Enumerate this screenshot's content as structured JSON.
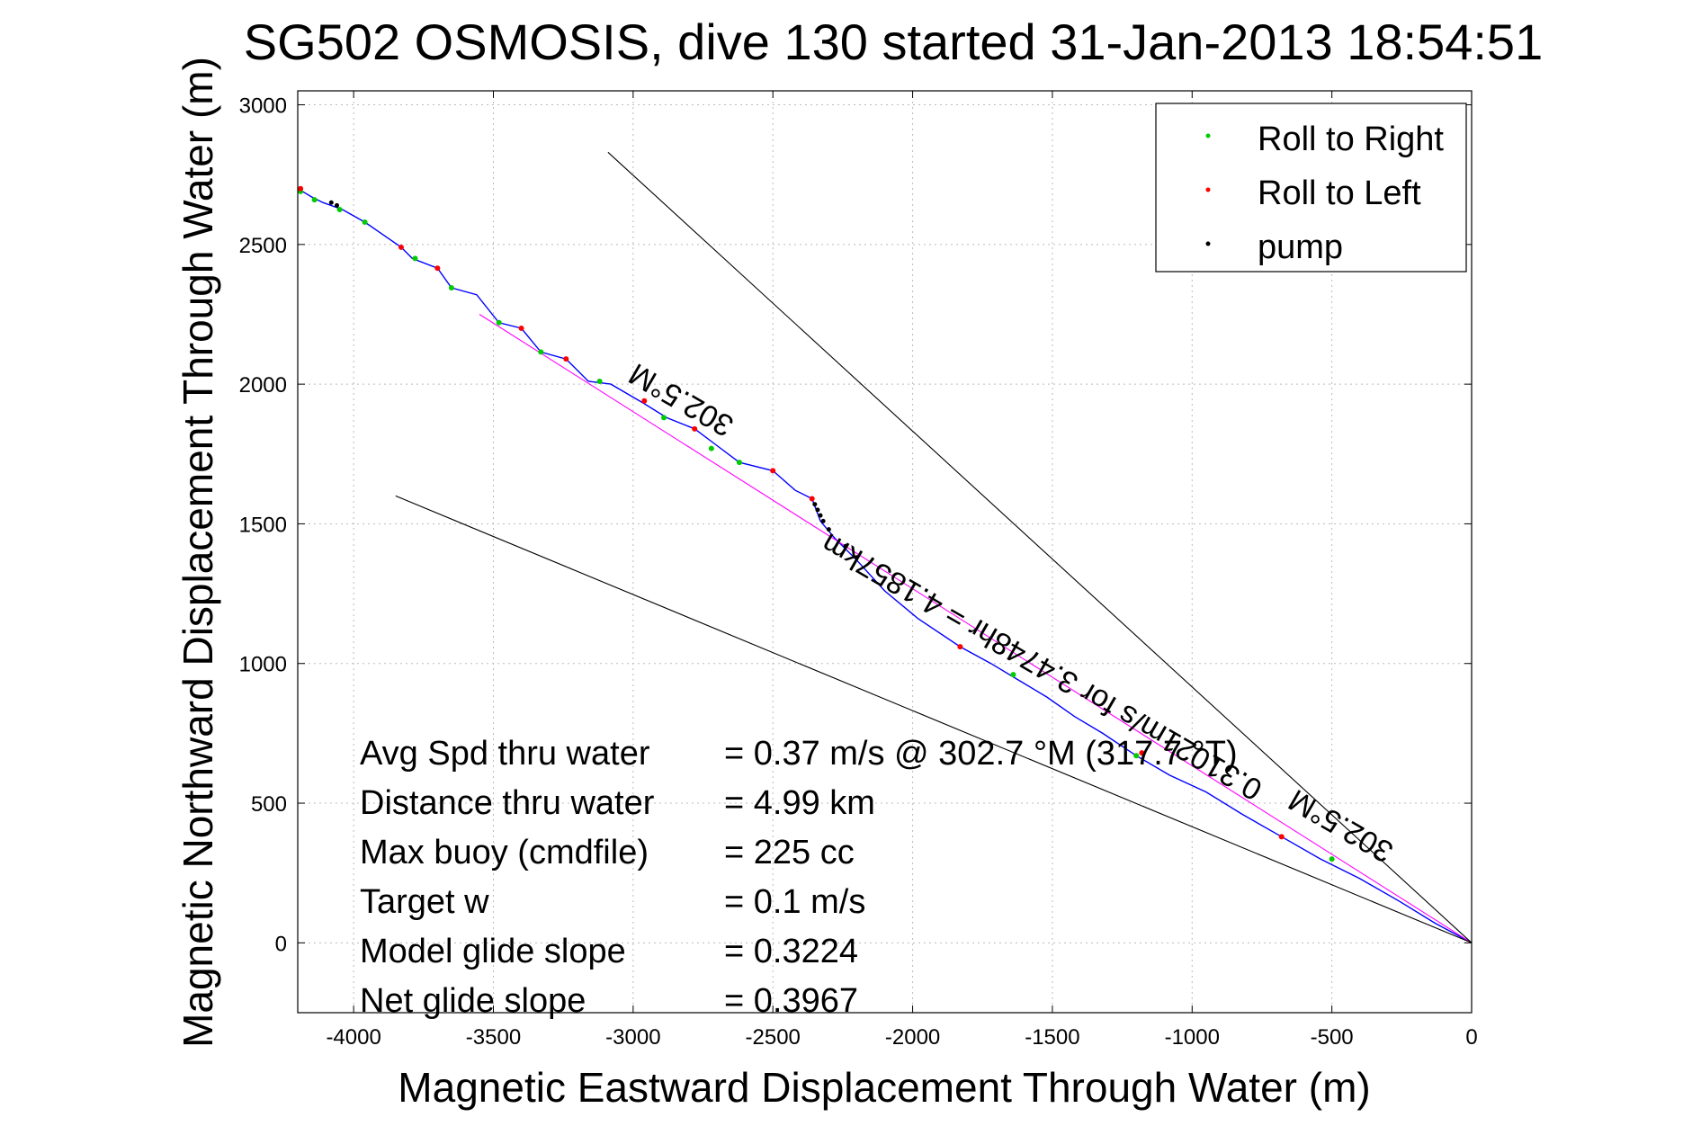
{
  "chart_data": {
    "type": "line",
    "title": "SG502 OSMOSIS, dive 130 started 31-Jan-2013 18:54:51",
    "xlabel": "Magnetic Eastward Displacement Through Water (m)",
    "ylabel": "Magnetic Northward Displacement Through Water (m)",
    "xlim": [
      -4200,
      0
    ],
    "ylim": [
      -250,
      3050
    ],
    "x_ticks": [
      -4000,
      -3500,
      -3000,
      -2500,
      -2000,
      -1500,
      -1000,
      -500,
      0
    ],
    "y_ticks": [
      0,
      500,
      1000,
      1500,
      2000,
      2500,
      3000
    ],
    "grid": true,
    "legend_position": "top-right",
    "legend": [
      {
        "label": "Roll to Right",
        "color": "#00cc00"
      },
      {
        "label": "Roll to Left",
        "color": "#ff0000"
      },
      {
        "label": "pump",
        "color": "#000000"
      }
    ],
    "series": [
      {
        "color": "#0000ff",
        "x": [
          -4200,
          -4150,
          -4110,
          -4040,
          -3960,
          -3830,
          -3790,
          -3700,
          -3650,
          -3560,
          -3480,
          -3400,
          -3330,
          -3240,
          -3160,
          -3080,
          -2960,
          -2880,
          -2780,
          -2700,
          -2620,
          -2500,
          -2420,
          -2360,
          -2330,
          -2280,
          -2200,
          -2100,
          -1980,
          -1830,
          -1720,
          -1620,
          -1520,
          -1420,
          -1320,
          -1200,
          -1080,
          -950,
          -820,
          -680,
          -540,
          -400,
          -260,
          -130,
          0
        ],
        "y": [
          2700,
          2670,
          2650,
          2625,
          2580,
          2490,
          2450,
          2415,
          2345,
          2320,
          2220,
          2200,
          2115,
          2090,
          2010,
          2000,
          1930,
          1880,
          1840,
          1780,
          1720,
          1690,
          1620,
          1590,
          1510,
          1450,
          1370,
          1260,
          1160,
          1060,
          1000,
          940,
          880,
          810,
          750,
          670,
          600,
          540,
          460,
          380,
          300,
          230,
          150,
          70,
          0
        ]
      },
      {
        "color": "#ff00ff",
        "x": [
          -3550,
          0
        ],
        "y": [
          2250,
          0
        ]
      },
      {
        "color": "#000000",
        "x": [
          -3090,
          0
        ],
        "y": [
          2830,
          0
        ]
      },
      {
        "color": "#000000",
        "x": [
          -3850,
          0
        ],
        "y": [
          1600,
          0
        ]
      }
    ],
    "markers": {
      "roll_right": {
        "x": [
          -4190,
          -4140,
          -4050,
          -3960,
          -3780,
          -3650,
          -3480,
          -3330,
          -3120,
          -2890,
          -2720,
          -2620,
          -1640,
          -1200,
          -500
        ],
        "y": [
          2690,
          2660,
          2625,
          2580,
          2450,
          2345,
          2220,
          2115,
          2010,
          1880,
          1770,
          1720,
          960,
          670,
          300
        ]
      },
      "roll_left": {
        "x": [
          -4190,
          -3830,
          -3700,
          -3400,
          -3240,
          -2960,
          -2780,
          -2500,
          -2360,
          -1830,
          -1180,
          -680
        ],
        "y": [
          2700,
          2490,
          2415,
          2200,
          2090,
          1940,
          1840,
          1690,
          1590,
          1060,
          680,
          380
        ]
      },
      "pump": {
        "x": [
          -4080,
          -4060,
          -2350,
          -2340,
          -2330,
          -2320,
          -2300,
          -2240,
          -2200
        ],
        "y": [
          2650,
          2640,
          1570,
          1550,
          1530,
          1510,
          1480,
          1420,
          1380
        ]
      }
    },
    "annotations": [
      {
        "text": "302.5°M",
        "x": -2810,
        "y": 1975,
        "angle_deg": 30
      },
      {
        "text": "0.31021m/s for 3.4748hr = 4.1857km",
        "x": -1520,
        "y": 1020,
        "angle_deg": 30
      },
      {
        "text": "302.5°M",
        "x": -450,
        "y": 450,
        "angle_deg": 30
      }
    ],
    "stats": [
      {
        "label": "Avg Spd thru water",
        "value": "=  0.37 m/s @ 302.7 °M (317.7 °T)"
      },
      {
        "label": "Distance thru water",
        "value": "=  4.99 km"
      },
      {
        "label": "Max buoy (cmdfile)",
        "value": "= 225 cc"
      },
      {
        "label": "Target w",
        "value": "= 0.1 m/s"
      },
      {
        "label": "Model glide slope",
        "value": "= 0.3224"
      },
      {
        "label": "Net glide slope",
        "value": "= 0.3967"
      }
    ]
  }
}
